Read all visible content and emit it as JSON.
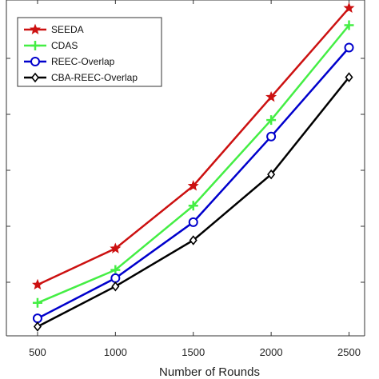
{
  "chart_data": {
    "type": "line",
    "title": "",
    "xlabel": "Number of Rounds",
    "ylabel": "",
    "x": [
      500,
      1000,
      1500,
      2000,
      2500
    ],
    "xlim": [
      300,
      2600
    ],
    "ylim": [
      0,
      1
    ],
    "grid": false,
    "legend_position": "top-left",
    "series": [
      {
        "name": "SEEDA",
        "color": "#cc1111",
        "marker": "star",
        "values": [
          0.155,
          0.265,
          0.455,
          0.725,
          0.995
        ]
      },
      {
        "name": "CDAS",
        "color": "#44ee44",
        "marker": "plus",
        "values": [
          0.1,
          0.2,
          0.395,
          0.655,
          0.943
        ]
      },
      {
        "name": "REEC-Overlap",
        "color": "#0000cc",
        "marker": "circle",
        "values": [
          0.053,
          0.175,
          0.345,
          0.605,
          0.875
        ]
      },
      {
        "name": "CBA-REEC-Overlap",
        "color": "#000000",
        "marker": "diamond",
        "values": [
          0.028,
          0.15,
          0.29,
          0.49,
          0.785
        ]
      }
    ]
  }
}
